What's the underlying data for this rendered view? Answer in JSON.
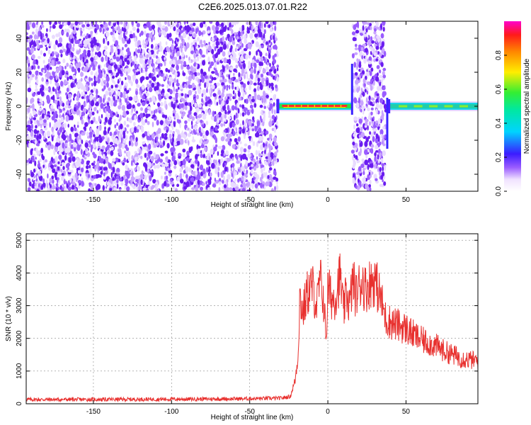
{
  "title": "C2E6.2025.013.07.01.R22",
  "colorbar": {
    "label": "Normalized spectral amplitude",
    "ticks": [
      0.0,
      0.2,
      0.4,
      0.6,
      0.8
    ],
    "range": [
      0.0,
      1.0
    ]
  },
  "chart_data": [
    {
      "type": "heatmap",
      "xlabel": "Height of straight line (km)",
      "ylabel": "Frequency (Hz)",
      "xlim": [
        -193,
        96
      ],
      "ylim": [
        -50,
        50
      ],
      "xticks": [
        -150,
        -100,
        -50,
        0,
        50
      ],
      "yticks": [
        -40,
        -20,
        0,
        20,
        40
      ],
      "regions": [
        {
          "x": [
            -193,
            -32
          ],
          "pattern": "broadband noise",
          "amplitude": 0.1
        },
        {
          "x": [
            -32,
            15
          ],
          "pattern": "narrow band near 0 Hz",
          "amplitude": 0.95
        },
        {
          "x": [
            16,
            37
          ],
          "pattern": "broadband noise",
          "amplitude": 0.1
        },
        {
          "x": [
            39,
            96
          ],
          "pattern": "narrow band near 0 Hz",
          "amplitude": 0.45
        }
      ]
    },
    {
      "type": "line",
      "xlabel": "Height of straight line (km)",
      "ylabel": "SNR (10 * v/v)",
      "xlim": [
        -193,
        96
      ],
      "ylim": [
        0,
        5200
      ],
      "xticks": [
        -150,
        -100,
        -50,
        0,
        50
      ],
      "yticks": [
        0,
        1000,
        2000,
        3000,
        4000,
        5000
      ],
      "grid": true,
      "series": [
        {
          "color": "#e8302e",
          "x": [
            -193,
            -150,
            -100,
            -60,
            -30,
            -24,
            -21,
            -19,
            -18,
            -16,
            -13,
            -10,
            -7,
            -5,
            -3,
            -1,
            0,
            3,
            5,
            6,
            8,
            10,
            12,
            14,
            16,
            18,
            20,
            22,
            24,
            27,
            30,
            32,
            34,
            37,
            40,
            45,
            50,
            55,
            60,
            65,
            70,
            75,
            80,
            85,
            90,
            96
          ],
          "y": [
            130,
            130,
            140,
            150,
            170,
            220,
            700,
            1500,
            3300,
            2800,
            3400,
            3600,
            3000,
            3800,
            3300,
            2000,
            3500,
            3200,
            3300,
            3600,
            3900,
            2800,
            3400,
            3000,
            3800,
            3300,
            3600,
            3800,
            3500,
            3700,
            3800,
            3500,
            3200,
            2600,
            2500,
            2400,
            2300,
            2100,
            1950,
            1850,
            1750,
            1600,
            1500,
            1400,
            1350,
            1300
          ]
        }
      ]
    }
  ]
}
